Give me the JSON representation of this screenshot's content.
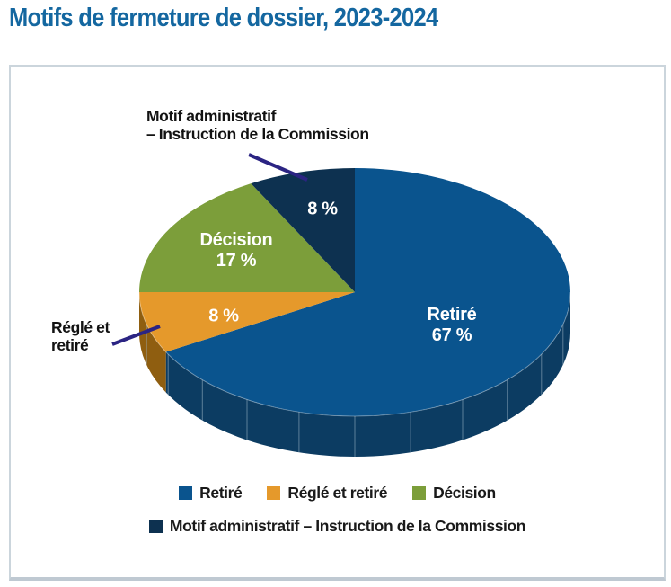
{
  "title": "Motifs de fermeture de dossier, 2023-2024",
  "colors": {
    "title_text": "#1467A0",
    "box_border": "#CBD5DC",
    "leader_line": "#2B2483",
    "slice_label_text": "#FFFFFF",
    "annotation_text": "#121212",
    "legend_text": "#1A1A1A",
    "rim_mesh_line": "#9FB6C6"
  },
  "chart_data": {
    "type": "pie",
    "style": "3d",
    "title": "Motifs de fermeture de dossier, 2023-2024",
    "unit": "%",
    "start_angle_deg": 0,
    "direction": "clockwise",
    "legend_position": "bottom",
    "slices": [
      {
        "label": "Retiré",
        "value_pct": 67,
        "color": "#0A548E",
        "side_color": "#0C3C62",
        "slice_label_lines": [
          "Retiré",
          "67 %"
        ]
      },
      {
        "label": "Réglé et retiré",
        "value_pct": 8,
        "color": "#E5992B",
        "side_color": "#8F5E10",
        "slice_label_lines": [
          "8 %"
        ]
      },
      {
        "label": "Décision",
        "value_pct": 17,
        "color": "#7C9E3A",
        "slice_label_lines": [
          "Décision",
          "17 %"
        ]
      },
      {
        "label": "Motif administratif – Instruction de la Commission",
        "value_pct": 8,
        "color": "#0D3150",
        "slice_label_lines": [
          "8 %"
        ]
      }
    ]
  },
  "annotations": [
    {
      "lines": [
        "Motif administratif",
        "– Instruction de la Commission"
      ],
      "target": "Motif administratif – Instruction de la Commission"
    },
    {
      "lines": [
        "Réglé et",
        "retiré"
      ],
      "target": "Réglé et retiré"
    }
  ]
}
